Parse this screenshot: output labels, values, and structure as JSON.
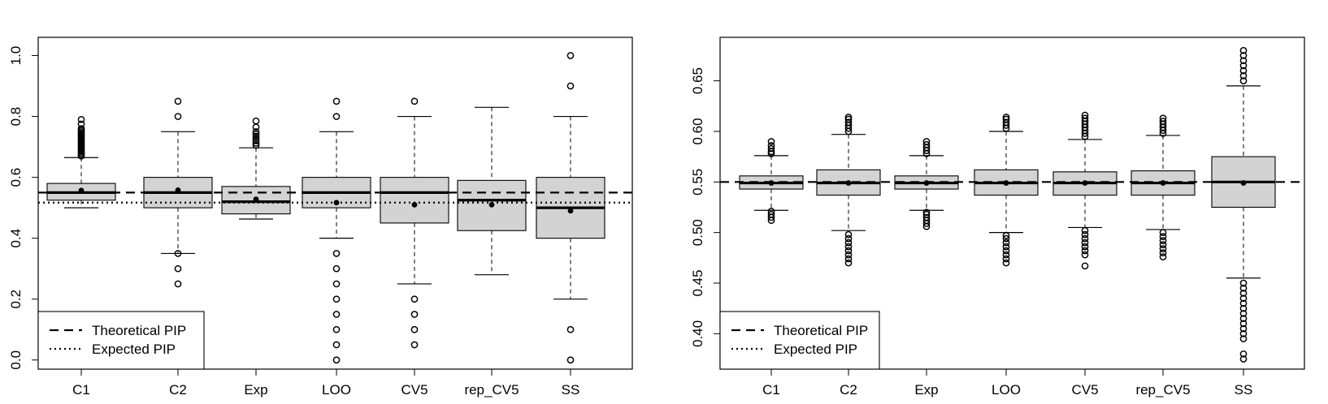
{
  "chart_data": [
    {
      "type": "boxplot",
      "categories": [
        "C1",
        "C2",
        "Exp",
        "LOO",
        "CV5",
        "rep_CV5",
        "SS"
      ],
      "ylim": [
        -0.03,
        1.06
      ],
      "yticks": [
        "0.0",
        "0.2",
        "0.4",
        "0.6",
        "0.8",
        "1.0"
      ],
      "theoretical_pip": 0.55,
      "expected_pip": 0.517,
      "legend": {
        "position": "bottom-left",
        "entries": [
          {
            "label": "Theoretical PIP",
            "style": "dashed"
          },
          {
            "label": "Expected PIP",
            "style": "dotted"
          }
        ]
      },
      "boxes": [
        {
          "q1": 0.525,
          "median": 0.55,
          "q3": 0.58,
          "wlo": 0.5,
          "whi": 0.665,
          "mean": 0.557,
          "outliers": [
            0.67,
            0.675,
            0.68,
            0.685,
            0.69,
            0.695,
            0.7,
            0.705,
            0.71,
            0.715,
            0.72,
            0.725,
            0.73,
            0.735,
            0.74,
            0.745,
            0.75,
            0.755,
            0.76,
            0.775,
            0.79
          ]
        },
        {
          "q1": 0.5,
          "median": 0.55,
          "q3": 0.6,
          "wlo": 0.35,
          "whi": 0.75,
          "mean": 0.558,
          "outliers": [
            0.25,
            0.3,
            0.35,
            0.8,
            0.85
          ]
        },
        {
          "q1": 0.48,
          "median": 0.52,
          "q3": 0.57,
          "wlo": 0.463,
          "whi": 0.697,
          "mean": 0.528,
          "outliers": [
            0.705,
            0.712,
            0.72,
            0.728,
            0.735,
            0.742,
            0.75,
            0.765,
            0.785
          ]
        },
        {
          "q1": 0.5,
          "median": 0.55,
          "q3": 0.6,
          "wlo": 0.4,
          "whi": 0.75,
          "mean": 0.517,
          "outliers": [
            0.0,
            0.05,
            0.1,
            0.15,
            0.2,
            0.25,
            0.3,
            0.35,
            0.8,
            0.85
          ]
        },
        {
          "q1": 0.45,
          "median": 0.55,
          "q3": 0.6,
          "wlo": 0.25,
          "whi": 0.8,
          "mean": 0.51,
          "outliers": [
            0.05,
            0.1,
            0.15,
            0.2,
            0.85
          ]
        },
        {
          "q1": 0.425,
          "median": 0.525,
          "q3": 0.59,
          "wlo": 0.28,
          "whi": 0.83,
          "mean": 0.51,
          "outliers": []
        },
        {
          "q1": 0.4,
          "median": 0.5,
          "q3": 0.6,
          "wlo": 0.2,
          "whi": 0.8,
          "mean": 0.49,
          "outliers": [
            0.0,
            0.1,
            0.9,
            1.0
          ]
        }
      ]
    },
    {
      "type": "boxplot",
      "categories": [
        "C1",
        "C2",
        "Exp",
        "LOO",
        "CV5",
        "rep_CV5",
        "SS"
      ],
      "ylim": [
        0.365,
        0.693
      ],
      "yticks": [
        "0.40",
        "0.45",
        "0.50",
        "0.55",
        "0.60",
        "0.65"
      ],
      "theoretical_pip": 0.55,
      "legend": {
        "position": "bottom-left",
        "entries": [
          {
            "label": "Theoretical PIP",
            "style": "dashed"
          },
          {
            "label": "Expected PIP",
            "style": "dotted"
          }
        ]
      },
      "boxes": [
        {
          "q1": 0.543,
          "median": 0.549,
          "q3": 0.556,
          "wlo": 0.522,
          "whi": 0.576,
          "mean": 0.549,
          "outliers": [
            0.512,
            0.515,
            0.518,
            0.521,
            0.578,
            0.58,
            0.583,
            0.586,
            0.59
          ]
        },
        {
          "q1": 0.537,
          "median": 0.549,
          "q3": 0.562,
          "wlo": 0.502,
          "whi": 0.597,
          "mean": 0.549,
          "outliers": [
            0.47,
            0.474,
            0.478,
            0.482,
            0.486,
            0.49,
            0.494,
            0.498,
            0.6,
            0.603,
            0.606,
            0.609,
            0.612,
            0.614
          ]
        },
        {
          "q1": 0.543,
          "median": 0.549,
          "q3": 0.556,
          "wlo": 0.522,
          "whi": 0.576,
          "mean": 0.549,
          "outliers": [
            0.506,
            0.509,
            0.512,
            0.515,
            0.518,
            0.52,
            0.578,
            0.581,
            0.584,
            0.587,
            0.59
          ]
        },
        {
          "q1": 0.537,
          "median": 0.549,
          "q3": 0.562,
          "wlo": 0.5,
          "whi": 0.6,
          "mean": 0.549,
          "outliers": [
            0.47,
            0.474,
            0.478,
            0.482,
            0.486,
            0.49,
            0.494,
            0.497,
            0.603,
            0.606,
            0.609,
            0.612,
            0.614
          ]
        },
        {
          "q1": 0.537,
          "median": 0.549,
          "q3": 0.56,
          "wlo": 0.505,
          "whi": 0.592,
          "mean": 0.549,
          "outliers": [
            0.467,
            0.478,
            0.482,
            0.486,
            0.49,
            0.494,
            0.498,
            0.502,
            0.595,
            0.598,
            0.601,
            0.604,
            0.607,
            0.61,
            0.613,
            0.616
          ]
        },
        {
          "q1": 0.537,
          "median": 0.549,
          "q3": 0.561,
          "wlo": 0.503,
          "whi": 0.596,
          "mean": 0.549,
          "outliers": [
            0.476,
            0.48,
            0.484,
            0.488,
            0.492,
            0.496,
            0.5,
            0.598,
            0.601,
            0.604,
            0.607,
            0.61,
            0.613
          ]
        },
        {
          "q1": 0.525,
          "median": 0.55,
          "q3": 0.575,
          "wlo": 0.455,
          "whi": 0.645,
          "mean": 0.549,
          "outliers": [
            0.375,
            0.38,
            0.395,
            0.4,
            0.405,
            0.41,
            0.415,
            0.42,
            0.425,
            0.43,
            0.435,
            0.44,
            0.445,
            0.45,
            0.65,
            0.655,
            0.66,
            0.665,
            0.67,
            0.675,
            0.68
          ]
        }
      ]
    }
  ]
}
